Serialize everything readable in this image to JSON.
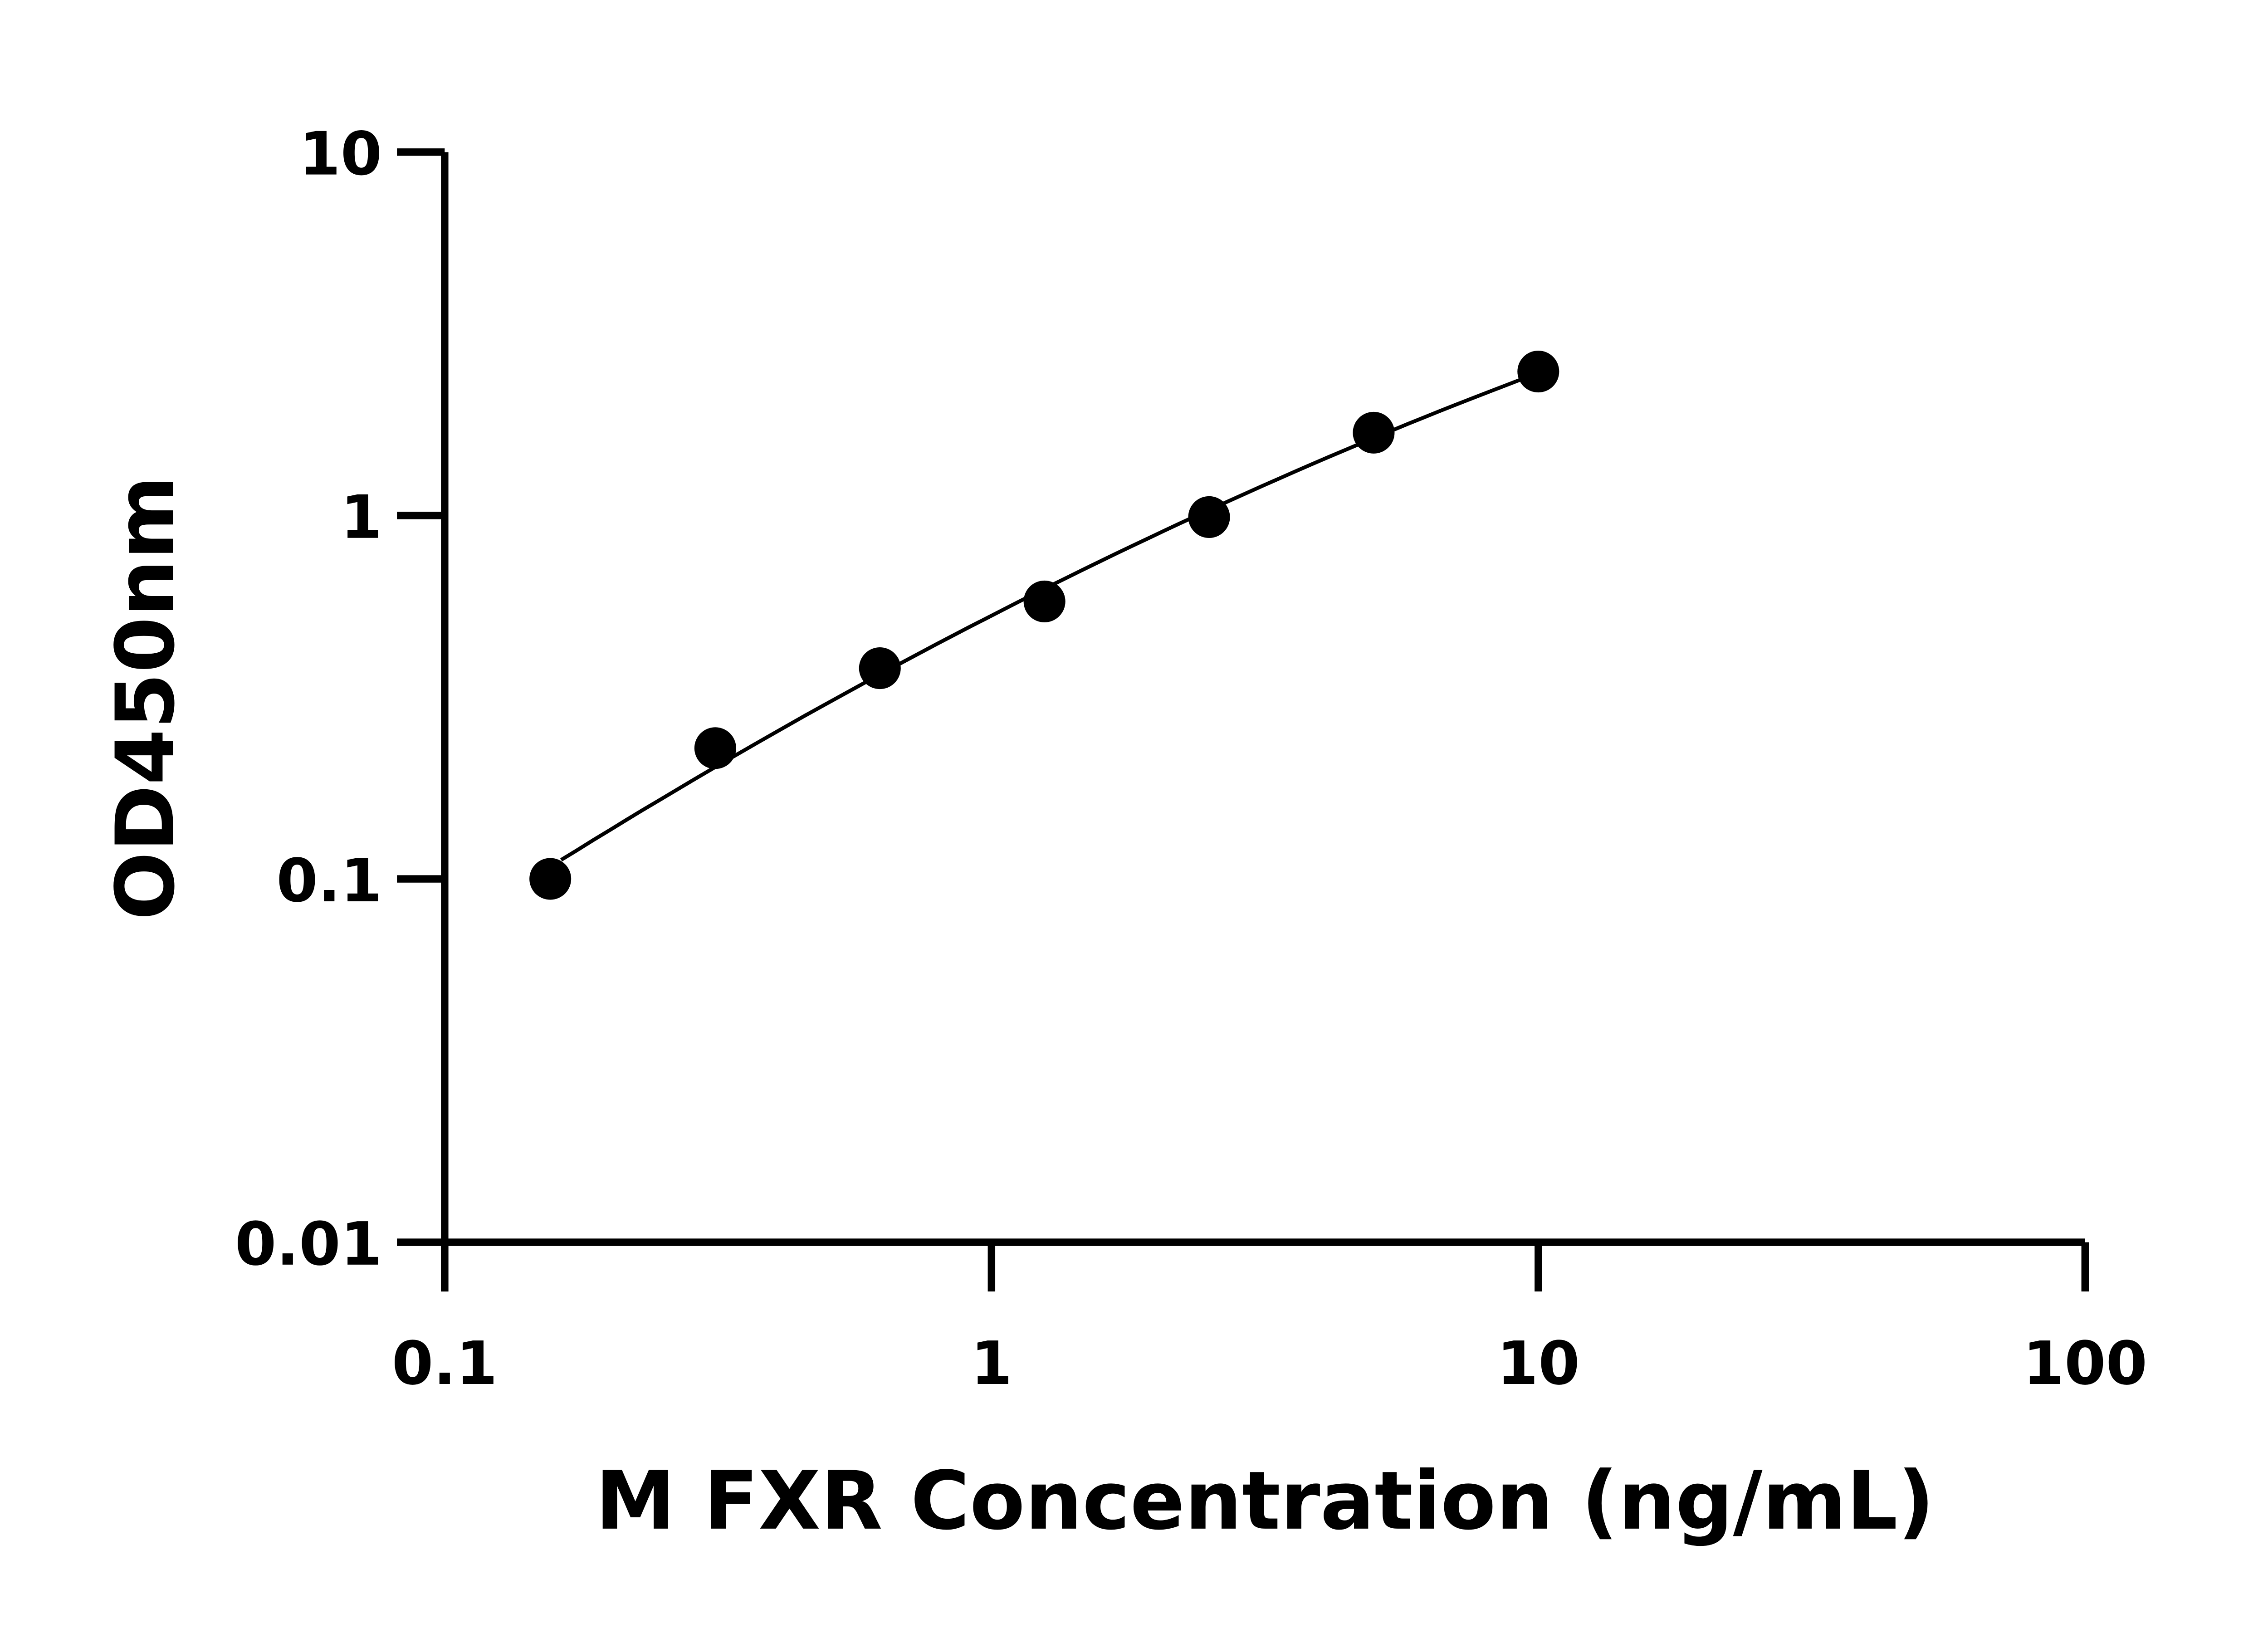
{
  "chart_data": {
    "type": "scatter",
    "title": "",
    "xlabel": "M FXR Concentration (ng/mL)",
    "ylabel": "OD450nm",
    "xscale": "log",
    "yscale": "log",
    "xlim": [
      0.1,
      100
    ],
    "ylim": [
      0.01,
      10
    ],
    "xticks": [
      "0.1",
      "1",
      "10",
      "100"
    ],
    "yticks": [
      "0.01",
      "0.1",
      "1",
      "10"
    ],
    "grid": false,
    "legend": "none",
    "marker_color": "#000000",
    "fit_line": true,
    "series": [
      {
        "x": [
          0.156,
          0.3125,
          0.625,
          1.25,
          2.5,
          5,
          10
        ],
        "y": [
          0.1,
          0.229,
          0.38,
          0.58,
          0.99,
          1.69,
          2.49
        ]
      }
    ]
  }
}
